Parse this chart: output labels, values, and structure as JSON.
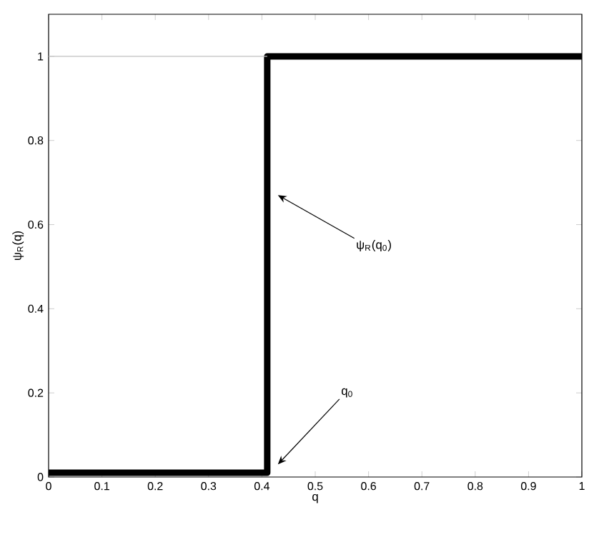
{
  "chart_data": {
    "type": "step",
    "xlabel": "q",
    "ylabel": "ψ$_{R}$(q)",
    "series": [
      {
        "color": "#000000",
        "x": [
          0,
          0.41,
          1
        ],
        "values": [
          0.01,
          1,
          1
        ]
      },
      {
        "type": "line",
        "color": "#c0c0c0",
        "x": [
          0,
          0.41
        ],
        "values": [
          1,
          1
        ]
      }
    ],
    "annotations": [
      "ψ$_{R}$(q$_{0}$)",
      "q$_{0}$"
    ],
    "xlim": [
      0,
      1
    ],
    "ylim": [
      0,
      1.1
    ],
    "xticks": [
      0,
      0.1,
      0.2,
      0.3,
      0.4,
      0.5,
      0.6,
      0.7,
      0.8,
      0.9,
      1
    ],
    "yticks": [
      0,
      0.2,
      0.4,
      0.6,
      0.8,
      1
    ],
    "grid": false
  }
}
